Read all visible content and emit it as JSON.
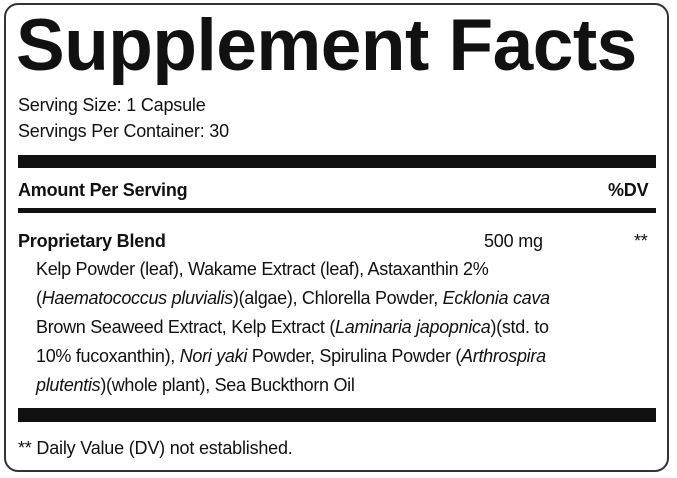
{
  "title": "Supplement Facts",
  "serving_size": "Serving Size: 1 Capsule",
  "servings_per_container": "Servings Per Container: 30",
  "header": {
    "amount_label": "Amount Per Serving",
    "dv_label": "%DV"
  },
  "blend": {
    "name": "Proprietary Blend",
    "amount": "500 mg",
    "dv": "**",
    "ingredient_lines": [
      [
        {
          "text": "Kelp Powder (leaf), Wakame Extract (leaf), Astaxanthin 2%",
          "italic": false
        }
      ],
      [
        {
          "text": "(",
          "italic": false
        },
        {
          "text": "Haematococcus pluvialis",
          "italic": true
        },
        {
          "text": ")(algae), Chlorella Powder, ",
          "italic": false
        },
        {
          "text": "Ecklonia cava",
          "italic": true
        }
      ],
      [
        {
          "text": "Brown Seaweed Extract, Kelp Extract (",
          "italic": false
        },
        {
          "text": "Laminaria japopnica",
          "italic": true
        },
        {
          "text": ")(std. to",
          "italic": false
        }
      ],
      [
        {
          "text": "10% fucoxanthin), ",
          "italic": false
        },
        {
          "text": "Nori yaki",
          "italic": true
        },
        {
          "text": " Powder, Spirulina Powder (",
          "italic": false
        },
        {
          "text": "Arthrospira",
          "italic": true
        }
      ],
      [
        {
          "text": "plutentis",
          "italic": true
        },
        {
          "text": ")(whole plant), Sea Buckthorn Oil",
          "italic": false
        }
      ]
    ]
  },
  "footnote": "** Daily Value (DV) not established."
}
